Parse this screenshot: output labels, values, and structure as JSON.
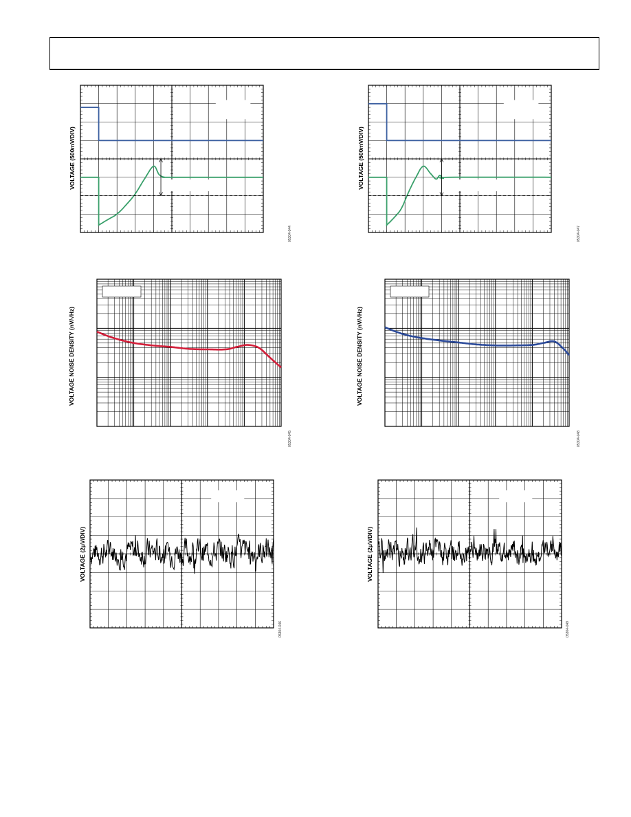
{
  "header": {},
  "figures": [
    {
      "id": "fig-44",
      "ylabel": "VOLTAGE (500mV/DIV)",
      "fig_id": "05304-044"
    },
    {
      "id": "fig-47",
      "ylabel": "VOLTAGE (500mV/DIV)",
      "fig_id": "05304-047"
    },
    {
      "id": "fig-45",
      "ylabel": "VOLTAGE NOISE DENSITY (nV/√Hz)",
      "fig_id": "05304-045"
    },
    {
      "id": "fig-48",
      "ylabel": "VOLTAGE NOISE DENSITY (nV/√Hz)",
      "fig_id": "05304-048"
    },
    {
      "id": "fig-46",
      "ylabel": "VOLTAGE (2μV/DIV)",
      "fig_id": "05304-046"
    },
    {
      "id": "fig-49",
      "ylabel": "VOLTAGE (2μV/DIV)",
      "fig_id": "05304-049"
    }
  ],
  "chart_data": [
    {
      "type": "line",
      "title": "",
      "ylabel": "VOLTAGE (500mV/DIV)",
      "grid": true,
      "x_divisions": 10,
      "y_divisions": 8,
      "series": [
        {
          "color": "#3b5fa0",
          "x": [
            0,
            1.0,
            1.0,
            10
          ],
          "y": [
            6.8,
            6.8,
            5.0,
            5.0
          ]
        },
        {
          "color": "#3aa06b",
          "x": [
            0,
            1.0,
            1.0,
            1.5,
            2.0,
            2.5,
            3.0,
            3.5,
            4.0,
            4.3,
            4.6,
            5.0,
            10
          ],
          "y": [
            3.0,
            3.0,
            0.4,
            0.7,
            1.0,
            1.5,
            2.1,
            2.9,
            3.6,
            3.15,
            3.0,
            3.0,
            3.0
          ]
        }
      ]
    },
    {
      "type": "line",
      "title": "",
      "ylabel": "VOLTAGE (500mV/DIV)",
      "grid": true,
      "x_divisions": 10,
      "y_divisions": 8,
      "series": [
        {
          "color": "#3b5fa0",
          "x": [
            0,
            1.0,
            1.0,
            10
          ],
          "y": [
            7.0,
            7.0,
            5.0,
            5.0
          ]
        },
        {
          "color": "#3aa06b",
          "x": [
            0,
            1.0,
            1.0,
            1.4,
            1.8,
            2.2,
            2.6,
            3.0,
            3.4,
            3.7,
            3.9,
            4.1,
            4.4,
            10
          ],
          "y": [
            3.0,
            3.0,
            0.4,
            0.8,
            1.3,
            2.2,
            3.0,
            3.6,
            3.2,
            2.9,
            3.1,
            2.95,
            3.0,
            3.0
          ]
        }
      ]
    },
    {
      "type": "line",
      "title": "",
      "ylabel": "VOLTAGE NOISE DENSITY (nV/√Hz)",
      "log_x": true,
      "log_y": true,
      "grid": true,
      "x_decades": 5,
      "y_decades": 3,
      "series": [
        {
          "color": "#d31f3a",
          "x": [
            0,
            0.3,
            0.6,
            1.0,
            1.5,
            2.0,
            2.5,
            3.0,
            3.5,
            3.8,
            4.1,
            4.4,
            4.7,
            5.0
          ],
          "y": [
            1.93,
            1.84,
            1.77,
            1.7,
            1.65,
            1.62,
            1.58,
            1.57,
            1.57,
            1.62,
            1.66,
            1.6,
            1.4,
            1.2
          ]
        }
      ]
    },
    {
      "type": "line",
      "title": "",
      "ylabel": "VOLTAGE NOISE DENSITY (nV/√Hz)",
      "log_x": true,
      "log_y": true,
      "grid": true,
      "x_decades": 5,
      "y_decades": 3,
      "series": [
        {
          "color": "#2b4a9a",
          "x": [
            0,
            0.3,
            0.6,
            1.0,
            1.5,
            2.0,
            2.5,
            3.0,
            3.5,
            4.0,
            4.3,
            4.6,
            4.85,
            5.0
          ],
          "y": [
            2.02,
            1.93,
            1.86,
            1.8,
            1.75,
            1.71,
            1.67,
            1.65,
            1.65,
            1.66,
            1.7,
            1.73,
            1.58,
            1.45
          ]
        }
      ]
    },
    {
      "type": "line",
      "title": "",
      "ylabel": "VOLTAGE (2μV/DIV)",
      "grid": true,
      "x_divisions": 10,
      "y_divisions": 8,
      "series": [
        {
          "color": "#000000",
          "baseline_div": 4.1,
          "amplitude_div": 0.7,
          "points": 400,
          "seed": 7
        }
      ]
    },
    {
      "type": "line",
      "title": "",
      "ylabel": "VOLTAGE (2μV/DIV)",
      "grid": true,
      "x_divisions": 10,
      "y_divisions": 8,
      "series": [
        {
          "color": "#000000",
          "baseline_div": 4.1,
          "amplitude_div": 0.7,
          "points": 400,
          "seed": 19
        }
      ]
    }
  ]
}
